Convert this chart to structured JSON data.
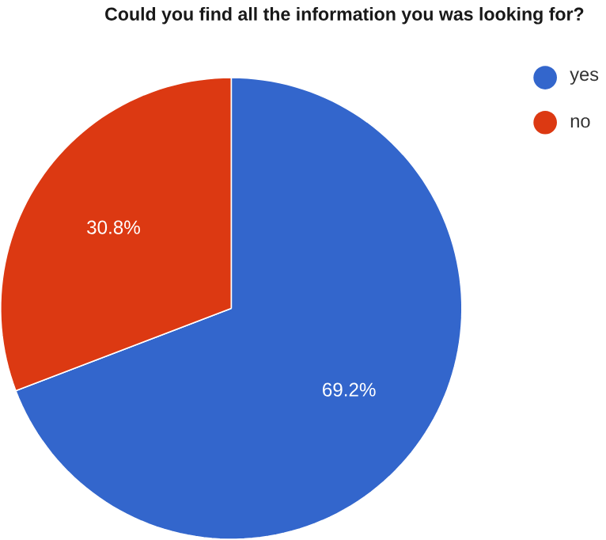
{
  "chart_data": {
    "type": "pie",
    "title": "Could you find all the information you was looking for?",
    "categories": [
      "yes",
      "no"
    ],
    "values": [
      69.2,
      30.8
    ],
    "colors": [
      "#3366cc",
      "#dc3912"
    ],
    "value_labels": [
      "69.2%",
      "30.8%"
    ],
    "legend": "top right"
  }
}
